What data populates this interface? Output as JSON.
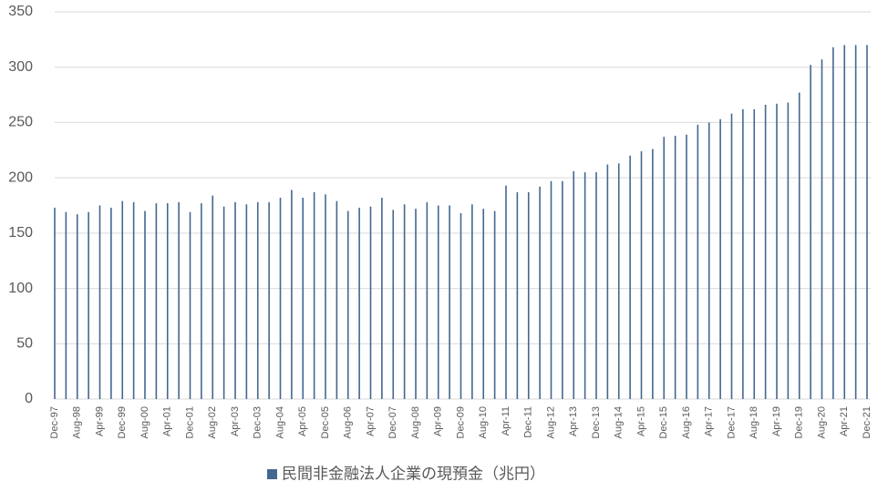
{
  "chart_data": {
    "type": "bar",
    "categories": [
      "Dec-97",
      null,
      "Aug-98",
      null,
      "Apr-99",
      null,
      "Dec-99",
      null,
      "Aug-00",
      null,
      "Apr-01",
      null,
      "Dec-01",
      null,
      "Aug-02",
      null,
      "Apr-03",
      null,
      "Dec-03",
      null,
      "Aug-04",
      null,
      "Apr-05",
      null,
      "Dec-05",
      null,
      "Aug-06",
      null,
      "Apr-07",
      null,
      "Dec-07",
      null,
      "Aug-08",
      null,
      "Apr-09",
      null,
      "Dec-09",
      null,
      "Aug-10",
      null,
      "Apr-11",
      null,
      "Dec-11",
      null,
      "Aug-12",
      null,
      "Apr-13",
      null,
      "Dec-13",
      null,
      "Aug-14",
      null,
      "Apr-15",
      null,
      "Dec-15",
      null,
      "Aug-16",
      null,
      "Apr-17",
      null,
      "Dec-17",
      null,
      "Aug-18",
      null,
      "Apr-19",
      null,
      "Dec-19",
      null,
      "Aug-20",
      null,
      "Apr-21",
      null,
      "Dec-21"
    ],
    "series": [
      {
        "name": "民間非金融法人企業の現預金（兆円）",
        "color": "#44678f",
        "values": [
          173,
          169,
          167,
          169,
          175,
          173,
          179,
          178,
          170,
          177,
          177,
          178,
          169,
          177,
          184,
          174,
          178,
          176,
          178,
          178,
          182,
          189,
          182,
          187,
          185,
          179,
          170,
          173,
          174,
          182,
          171,
          176,
          172,
          178,
          175,
          175,
          168,
          176,
          172,
          170,
          193,
          187,
          187,
          192,
          197,
          197,
          206,
          205,
          205,
          212,
          213,
          220,
          224,
          226,
          237,
          238,
          239,
          248,
          250,
          253,
          258,
          262,
          262,
          266,
          267,
          268,
          277,
          302,
          307,
          318,
          320,
          320,
          320
        ]
      }
    ],
    "ylim": [
      0,
      350
    ],
    "yticks": [
      0,
      50,
      100,
      150,
      200,
      250,
      300,
      350
    ],
    "grid": true
  }
}
